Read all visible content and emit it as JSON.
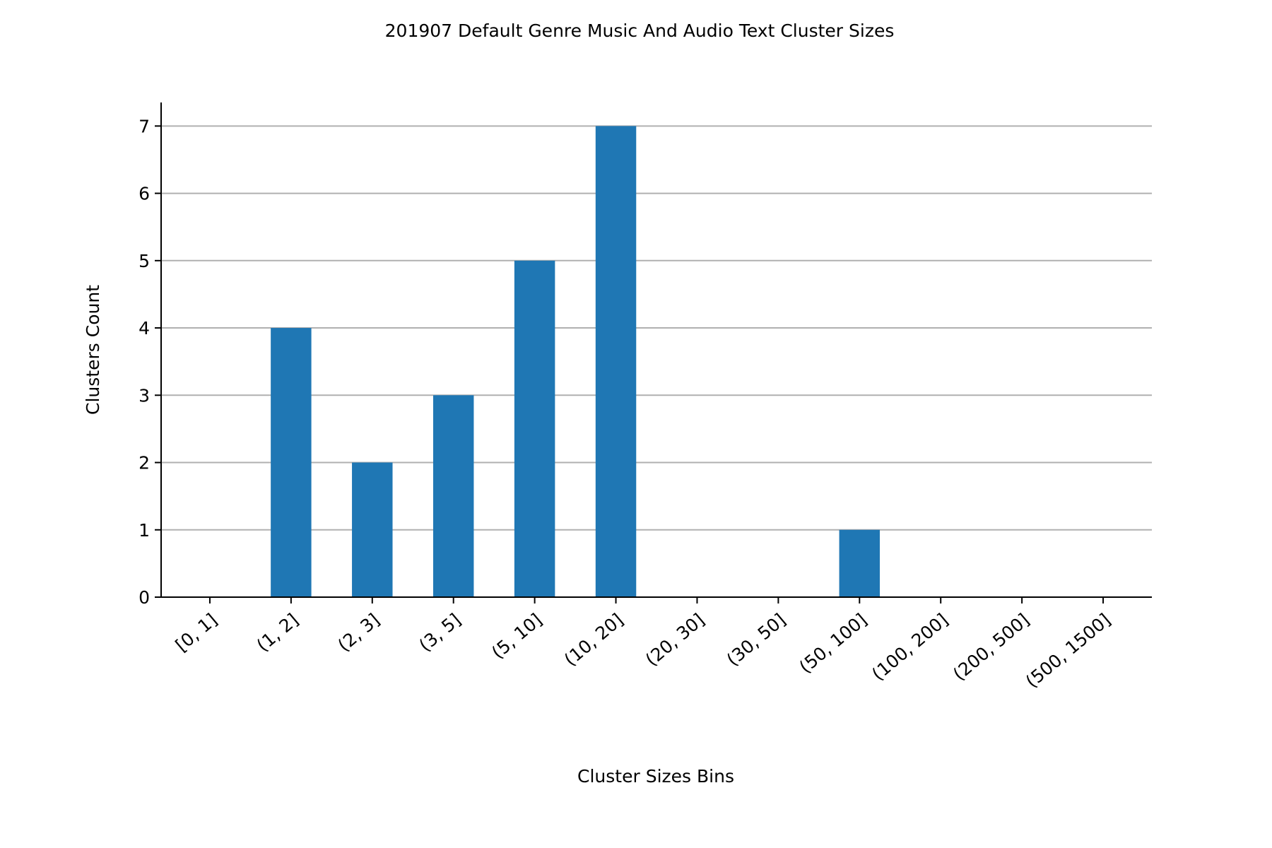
{
  "colors": {
    "bar": "#1f77b4",
    "grid": "#b0b0b0",
    "axis": "#000000"
  },
  "chart_data": {
    "type": "bar",
    "title": "201907 Default Genre Music And Audio Text Cluster Sizes",
    "xlabel": "Cluster Sizes Bins",
    "ylabel": "Clusters Count",
    "categories": [
      "[0, 1]",
      "(1, 2]",
      "(2, 3]",
      "(3, 5]",
      "(5, 10]",
      "(10, 20]",
      "(20, 30]",
      "(30, 50]",
      "(50, 100]",
      "(100, 200]",
      "(200, 500]",
      "(500, 1500]"
    ],
    "values": [
      0,
      4,
      2,
      3,
      5,
      7,
      0,
      0,
      1,
      0,
      0,
      0
    ],
    "ylim": [
      0,
      7.35
    ],
    "yticks": [
      0,
      1,
      2,
      3,
      4,
      5,
      6,
      7
    ],
    "grid": "horizontal",
    "legend": "none"
  }
}
